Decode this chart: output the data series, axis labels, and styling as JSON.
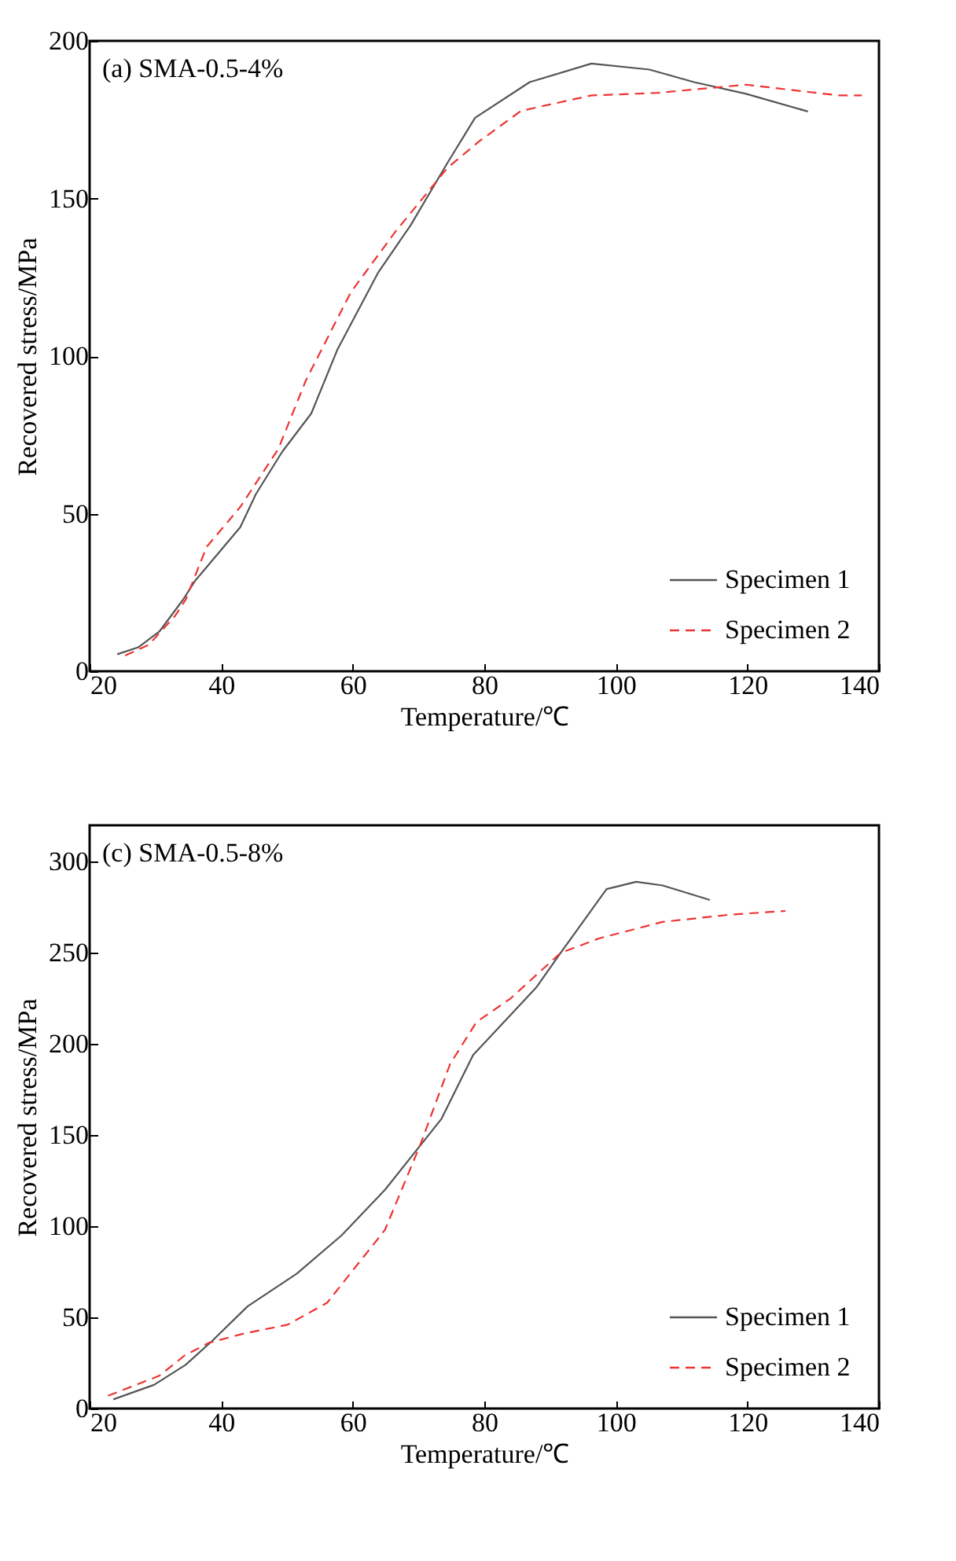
{
  "chart_data": [
    {
      "type": "line",
      "title": "(a) SMA-0.5-4%",
      "xlabel": "Temperature/℃",
      "ylabel": "Recovered stress/MPa",
      "xlim": [
        20,
        140
      ],
      "xticks": [
        20,
        40,
        60,
        80,
        100,
        120,
        140
      ],
      "ylim": [
        0,
        200
      ],
      "yticks": [
        0,
        50,
        100,
        150,
        200
      ],
      "grid": false,
      "legend": "bottom right",
      "series": [
        {
          "name": "Specimen 1",
          "color": "#555555",
          "line_style": "solid",
          "x": [
            24.2,
            27.4,
            30.6,
            34.2,
            36.0,
            42.9,
            45.3,
            49.3,
            53.7,
            57.7,
            63.9,
            68.8,
            74.4,
            78.6,
            86.9,
            96.3,
            105.1,
            111.9,
            119.8,
            129.2
          ],
          "values": [
            5.4,
            7.6,
            12.6,
            22.7,
            28.6,
            45.7,
            56.3,
            69.7,
            81.8,
            102.2,
            126.6,
            141.5,
            161.3,
            175.6,
            186.9,
            192.8,
            190.9,
            186.9,
            183.2,
            177.6
          ]
        },
        {
          "name": "Specimen 2",
          "color": "#ee3333",
          "line_style": "dashed",
          "x": [
            25.4,
            29.0,
            33.0,
            34.6,
            37.8,
            42.9,
            48.7,
            52.9,
            59.7,
            66.5,
            74.4,
            79.2,
            85.6,
            96.3,
            106.3,
            115.1,
            119.8,
            133.8,
            137.4
          ],
          "values": [
            5.0,
            8.4,
            17.6,
            22.7,
            39.5,
            52.1,
            70.6,
            92.4,
            120.2,
            139.5,
            159.7,
            168.1,
            177.8,
            182.7,
            183.5,
            185.2,
            186.1,
            182.7,
            182.7
          ]
        }
      ]
    },
    {
      "type": "line",
      "title": "(c) SMA-0.5-8%",
      "xlabel": "Temperature/℃",
      "ylabel": "Recovered stress/MPa",
      "xlim": [
        20,
        140
      ],
      "xticks": [
        20,
        40,
        60,
        80,
        100,
        120,
        140
      ],
      "ylim": [
        0,
        320
      ],
      "yticks": [
        0,
        50,
        100,
        150,
        200,
        250,
        300
      ],
      "grid": false,
      "legend": "bottom right",
      "series": [
        {
          "name": "Specimen 1",
          "color": "#555555",
          "line_style": "solid",
          "x": [
            23.6,
            29.8,
            34.6,
            38.6,
            44.0,
            51.5,
            58.3,
            64.9,
            73.5,
            78.3,
            87.9,
            91.6,
            98.6,
            103.1,
            107.1,
            114.3
          ],
          "values": [
            5,
            13,
            24,
            37,
            56,
            74,
            95,
            120,
            159,
            194,
            231,
            250,
            285,
            289,
            287,
            279
          ]
        },
        {
          "name": "Specimen 2",
          "color": "#ee3333",
          "line_style": "dashed",
          "x": [
            22.8,
            30.6,
            34.4,
            38.1,
            43.3,
            50.1,
            56.1,
            64.9,
            70.3,
            74.8,
            78.8,
            84.0,
            91.6,
            97.5,
            107.1,
            117.4,
            125.8
          ],
          "values": [
            7,
            18,
            29,
            36,
            41,
            46,
            58,
            98,
            145,
            189,
            212,
            225,
            250,
            258,
            267,
            271,
            273
          ]
        }
      ]
    }
  ]
}
